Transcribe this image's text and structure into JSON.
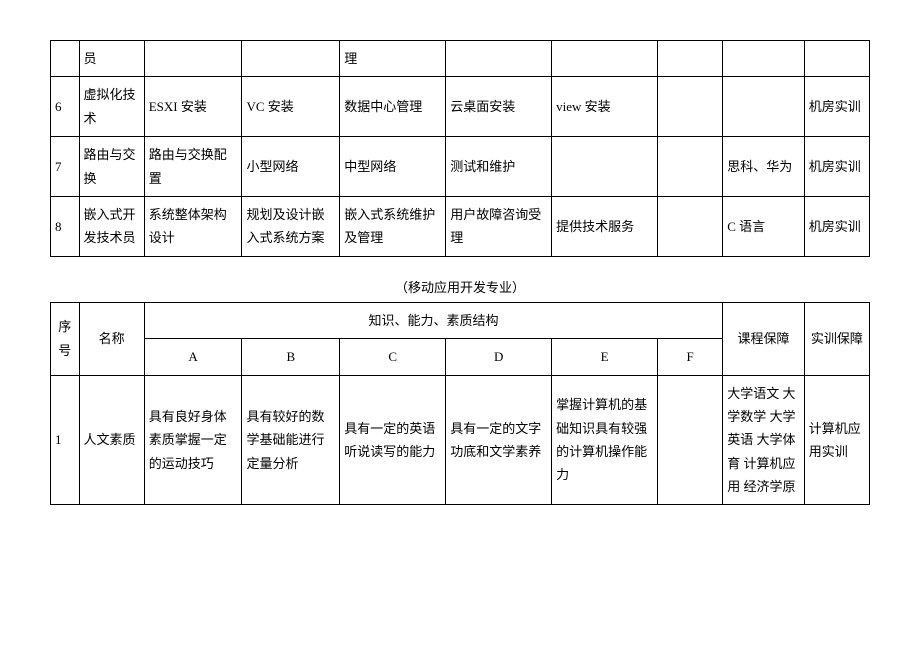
{
  "table1": {
    "rows": [
      [
        "",
        "员",
        "",
        "",
        "理",
        "",
        "",
        "",
        "",
        ""
      ],
      [
        "6",
        "虚拟化技术",
        "ESXI 安装",
        "VC 安装",
        "数据中心管理",
        "云桌面安装",
        "view 安装",
        "",
        "",
        "机房实训"
      ],
      [
        "7",
        "路由与交换",
        "路由与交换配置",
        "小型网络",
        "中型网络",
        "测试和维护",
        "",
        "",
        "思科、华为",
        "机房实训"
      ],
      [
        "8",
        "嵌入式开发技术员",
        "系统整体架构设计",
        "规划及设计嵌入式系统方案",
        "嵌入式系统维护及管理",
        "用户故障咨询受理",
        "提供技术服务",
        "",
        "C 语言",
        "机房实训"
      ]
    ]
  },
  "caption2": "（移动应用开发专业）",
  "table2": {
    "header": {
      "c0": "序号",
      "c1": "名称",
      "group": "知识、能力、素质结构",
      "a": "A",
      "b": "B",
      "c": "C",
      "d": "D",
      "e": "E",
      "f": "F",
      "c8": "课程保障",
      "c9": "实训保障"
    },
    "row1": {
      "num": "1",
      "name": "人文素质",
      "a": "具有良好身体素质掌握一定的运动技巧",
      "b": "具有较好的数学基础能进行定量分析",
      "c": "具有一定的英语听说读写的能力",
      "d": "具有一定的文字功底和文学素养",
      "e": "掌握计算机的基础知识具有较强的计算机操作能力",
      "f": "",
      "g": "大学语文 大学数学 大学英语 大学体育 计算机应用\n经济学原",
      "h": "计算机应用实训"
    }
  },
  "style": {
    "background_color": "#ffffff",
    "border_color": "#000000",
    "text_color": "#000000",
    "font_family": "SimSun",
    "font_size_pt": 10,
    "line_height": 1.8
  }
}
